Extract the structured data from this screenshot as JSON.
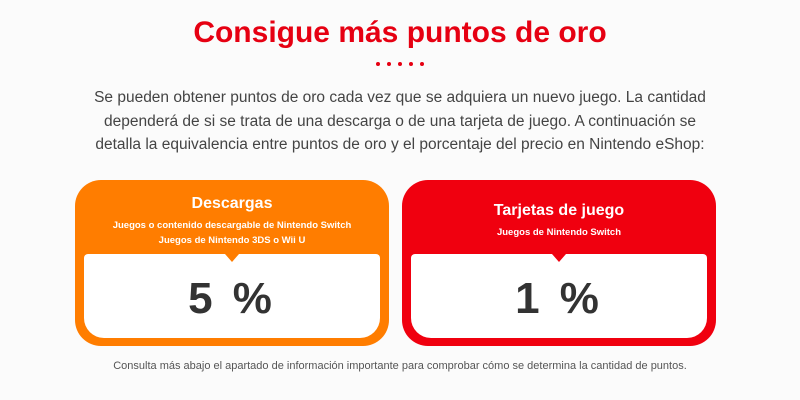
{
  "header": {
    "title": "Consigue más puntos de oro",
    "intro": "Se pueden obtener puntos de oro cada vez que se adquiera un nuevo juego. La cantidad dependerá de si se trata de una descarga o de una tarjeta de juego. A continuación se detalla la equivalencia entre puntos de oro y el porcentaje del precio en Nintendo eShop:"
  },
  "cards": [
    {
      "title": "Descargas",
      "subtitles": [
        "Juegos o contenido descargable de Nintendo Switch",
        "Juegos de Nintendo 3DS o Wii U"
      ],
      "value": "5 %"
    },
    {
      "title": "Tarjetas de juego",
      "subtitles": [
        "Juegos de Nintendo Switch"
      ],
      "value": "1 %"
    }
  ],
  "footer": {
    "note": "Consulta más abajo el apartado de información importante para comprobar cómo se determina la cantidad de puntos."
  }
}
